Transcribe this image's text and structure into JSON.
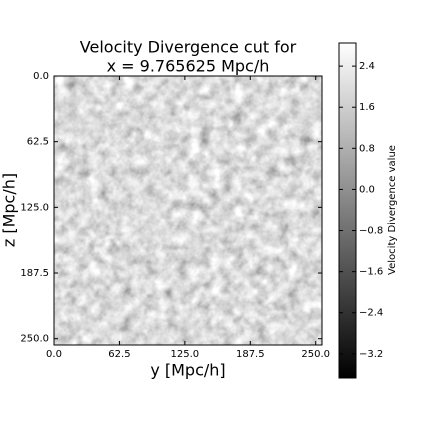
{
  "chart_data": {
    "type": "heatmap",
    "title": [
      "Velocity Divergence cut for",
      "x = 9.765625 Mpc/h"
    ],
    "x_label": "y [Mpc/h]",
    "y_label": "z [Mpc/h]",
    "xlim": [
      0,
      256
    ],
    "ylim": [
      0,
      256
    ],
    "y_inverted": true,
    "xticks": [
      {
        "value": 0,
        "label": "0.0"
      },
      62.5,
      {
        "value": 125,
        "label": "125.0"
      },
      187.5,
      {
        "value": 250,
        "label": "250.0"
      }
    ],
    "yticks": [
      {
        "value": 0,
        "label": "0.0"
      },
      62.5,
      {
        "value": 125,
        "label": "125.0"
      },
      187.5,
      {
        "value": 250,
        "label": "250.0"
      }
    ],
    "colorbar": {
      "label": "Velocity Divergence value",
      "lim": [
        -3.67,
        2.85
      ],
      "ticks": [
        {
          "value": -3.2,
          "label": "−3.2"
        },
        {
          "value": -2.4,
          "label": "−2.4"
        },
        {
          "value": -1.6,
          "label": "−1.6"
        },
        {
          "value": -0.8,
          "label": "−0.8"
        },
        {
          "value": 0,
          "label": "0.0"
        },
        0.8,
        1.6,
        2.4
      ],
      "colors": [
        "#000000",
        "#ffffff"
      ]
    }
  }
}
